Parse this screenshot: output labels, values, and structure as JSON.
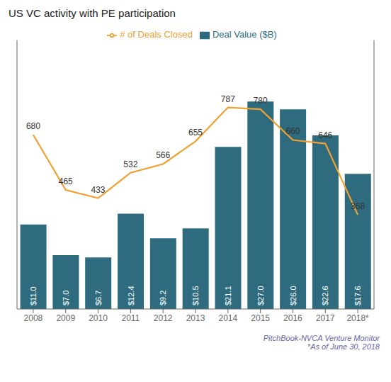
{
  "chart_data": {
    "type": "bar",
    "title": "US VC activity with PE participation",
    "categories": [
      "2008",
      "2009",
      "2010",
      "2011",
      "2012",
      "2013",
      "2014",
      "2015",
      "2016",
      "2017",
      "2018*"
    ],
    "series": [
      {
        "name": "Deal Value ($B)",
        "type": "bar",
        "color": "#2e6b7e",
        "values": [
          11.0,
          7.0,
          6.7,
          12.4,
          9.2,
          10.5,
          21.1,
          27.0,
          26.0,
          22.6,
          17.6
        ],
        "value_labels": [
          "$11.0",
          "$7.0",
          "$6.7",
          "$12.4",
          "$9.2",
          "$10.5",
          "$21.1",
          "$27.0",
          "$26.0",
          "$22.6",
          "$17.6"
        ],
        "data_labels": true
      },
      {
        "name": "# of Deals Closed",
        "type": "line",
        "color": "#f0a030",
        "axis": "y2",
        "values": [
          680,
          465,
          433,
          532,
          566,
          655,
          787,
          780,
          660,
          646,
          368
        ],
        "data_labels": true
      }
    ],
    "ylim": [
      0,
      35
    ],
    "y2lim": [
      0,
      1050
    ],
    "tick_labels": "x",
    "legend": "top",
    "grid": false,
    "annotations": [
      "PitchBook-NVCA Venture Monitor",
      "*As of June 30, 2018"
    ]
  }
}
